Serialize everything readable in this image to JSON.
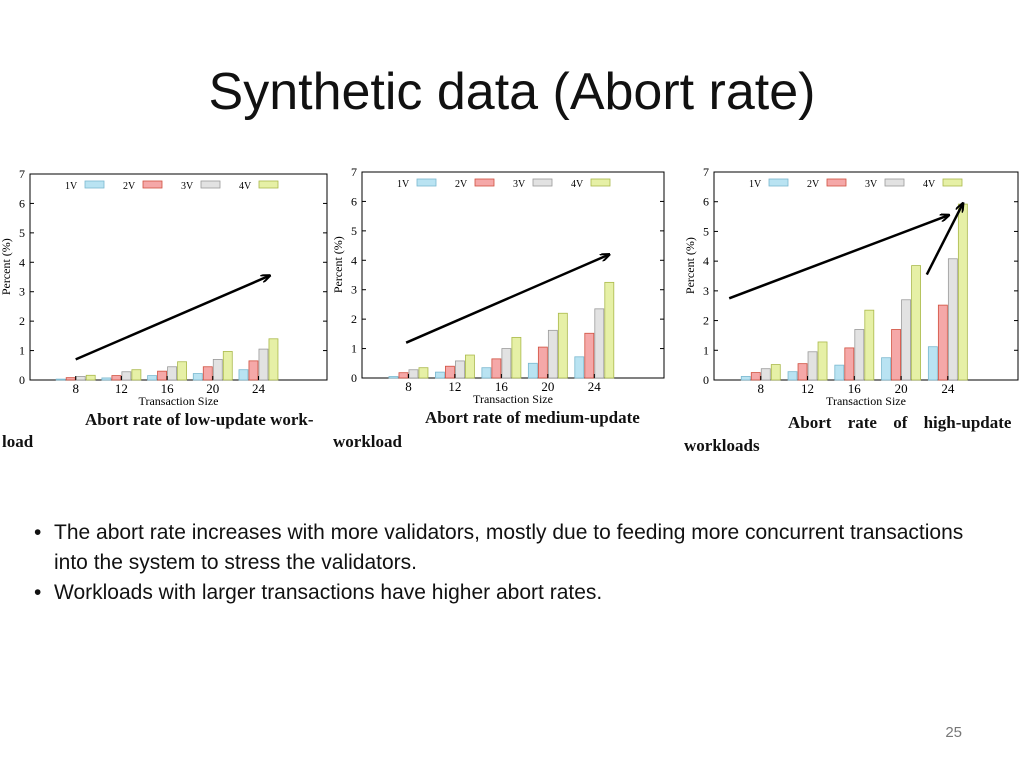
{
  "slide": {
    "title": "Synthetic data (Abort rate)",
    "page_number": "25",
    "bullets": [
      "The abort rate increases with more validators, mostly due to feeding more concurrent transactions into the system to stress the validators.",
      "Workloads with larger transactions have higher abort rates."
    ],
    "bullet_marker": "•"
  },
  "colors": {
    "1V": "#b9e3f2",
    "2V": "#f5a8a8",
    "3V": "#e2e2e2",
    "4V": "#e6f0a6",
    "1V_edge": "#7ab8cf",
    "2V_edge": "#d0503f",
    "3V_edge": "#9a9a9a",
    "4V_edge": "#aab94b"
  },
  "chart_data": [
    {
      "type": "bar",
      "caption_line1": "Abort rate of low-update work-",
      "caption_line2": "load",
      "xlabel": "Transaction Size",
      "ylabel": "Percent (%)",
      "ylim": [
        0,
        7
      ],
      "yticks": [
        "0",
        "1",
        "2",
        "3",
        "4",
        "5",
        "6",
        "7"
      ],
      "categories": [
        "8",
        "12",
        "16",
        "20",
        "24"
      ],
      "legend_labels": [
        "1V",
        "2V",
        "3V",
        "4V"
      ],
      "series": [
        {
          "name": "1V",
          "values": [
            0.03,
            0.07,
            0.15,
            0.22,
            0.35
          ]
        },
        {
          "name": "2V",
          "values": [
            0.08,
            0.15,
            0.3,
            0.45,
            0.65
          ]
        },
        {
          "name": "3V",
          "values": [
            0.12,
            0.28,
            0.45,
            0.7,
            1.05
          ]
        },
        {
          "name": "4V",
          "values": [
            0.16,
            0.35,
            0.62,
            0.97,
            1.4
          ]
        }
      ],
      "arrows": [
        {
          "x1": 8,
          "y1": 0.7,
          "x2": 25,
          "y2": 3.55
        }
      ]
    },
    {
      "type": "bar",
      "caption_line1": "Abort rate of medium-update",
      "caption_line2": "workload",
      "xlabel": "Transaction Size",
      "ylabel": "Percent (%)",
      "ylim": [
        0,
        7
      ],
      "yticks": [
        "0",
        "1",
        "2",
        "3",
        "4",
        "5",
        "6",
        "7"
      ],
      "categories": [
        "8",
        "12",
        "16",
        "20",
        "24"
      ],
      "legend_labels": [
        "1V",
        "2V",
        "3V",
        "4V"
      ],
      "series": [
        {
          "name": "1V",
          "values": [
            0.05,
            0.2,
            0.35,
            0.5,
            0.72
          ]
        },
        {
          "name": "2V",
          "values": [
            0.18,
            0.4,
            0.65,
            1.05,
            1.52
          ]
        },
        {
          "name": "3V",
          "values": [
            0.28,
            0.58,
            1.0,
            1.62,
            2.35
          ]
        },
        {
          "name": "4V",
          "values": [
            0.35,
            0.78,
            1.38,
            2.2,
            3.25
          ]
        }
      ],
      "arrows": [
        {
          "x1": 7.8,
          "y1": 1.2,
          "x2": 25.3,
          "y2": 4.2
        }
      ]
    },
    {
      "type": "bar",
      "caption_line1": "Abort rate of high-update",
      "caption_line2": "workloads",
      "xlabel": "Transaction Size",
      "ylabel": "Percent (%)",
      "ylim": [
        0,
        7
      ],
      "yticks": [
        "0",
        "1",
        "2",
        "3",
        "4",
        "5",
        "6",
        "7"
      ],
      "categories": [
        "8",
        "12",
        "16",
        "20",
        "24"
      ],
      "legend_labels": [
        "1V",
        "2V",
        "3V",
        "4V"
      ],
      "series": [
        {
          "name": "1V",
          "values": [
            0.12,
            0.28,
            0.5,
            0.75,
            1.12
          ]
        },
        {
          "name": "2V",
          "values": [
            0.25,
            0.55,
            1.08,
            1.7,
            2.52
          ]
        },
        {
          "name": "3V",
          "values": [
            0.38,
            0.95,
            1.7,
            2.7,
            4.08
          ]
        },
        {
          "name": "4V",
          "values": [
            0.52,
            1.28,
            2.35,
            3.85,
            5.92
          ]
        }
      ],
      "arrows": [
        {
          "x1": 5.3,
          "y1": 2.75,
          "x2": 24.1,
          "y2": 5.55
        },
        {
          "x1": 22.2,
          "y1": 3.55,
          "x2": 25.3,
          "y2": 5.95
        }
      ]
    }
  ]
}
